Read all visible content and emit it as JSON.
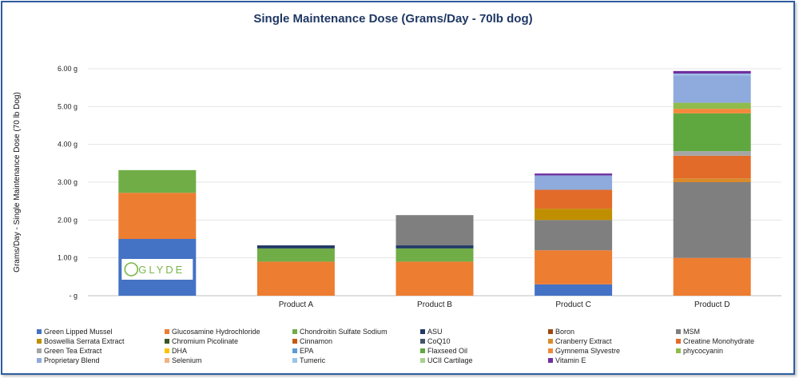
{
  "chart_data": {
    "type": "bar",
    "stacked": true,
    "title": "Single Maintenance Dose (Grams/Day - 70lb dog)",
    "ylabel": "Grams/Day - Single Maintenance Dose (70 lb Dog)",
    "xlabel": "",
    "ylim": [
      0,
      6
    ],
    "yticks": [
      {
        "value": 0,
        "label": "-   g"
      },
      {
        "value": 1,
        "label": "1.00 g"
      },
      {
        "value": 2,
        "label": "2.00 g"
      },
      {
        "value": 3,
        "label": "3.00 g"
      },
      {
        "value": 4,
        "label": "4.00 g"
      },
      {
        "value": 5,
        "label": "5.00 g"
      },
      {
        "value": 6,
        "label": "6.00 g"
      }
    ],
    "categories": [
      "",
      "Product A",
      "Product B",
      "Product C",
      "Product D"
    ],
    "logo_text": "GLYDE",
    "legend_position": "bottom",
    "series": [
      {
        "name": "Green Lipped Mussel",
        "color": "#4472c4",
        "values": [
          1.5,
          0,
          0,
          0.3,
          0
        ]
      },
      {
        "name": "Glucosamine Hydrochloride",
        "color": "#ed7d31",
        "values": [
          1.22,
          0.9,
          0.9,
          0.9,
          1.0
        ]
      },
      {
        "name": "Chondroitin Sulfate Sodium",
        "color": "#70ad47",
        "values": [
          0.6,
          0.35,
          0.35,
          0,
          0
        ]
      },
      {
        "name": "ASU",
        "color": "#203864",
        "values": [
          0,
          0.08,
          0.08,
          0,
          0
        ]
      },
      {
        "name": "Boron",
        "color": "#9e480e",
        "values": [
          0,
          0,
          0,
          0,
          0
        ]
      },
      {
        "name": "MSM",
        "color": "#7f7f7f",
        "values": [
          0,
          0,
          0.8,
          0.8,
          2.0
        ]
      },
      {
        "name": "Boswellia Serrata Extract",
        "color": "#bf8f00",
        "values": [
          0,
          0,
          0,
          0.3,
          0
        ]
      },
      {
        "name": "Chromium Picolinate",
        "color": "#375623",
        "values": [
          0,
          0,
          0,
          0,
          0
        ]
      },
      {
        "name": "Cinnamon",
        "color": "#c55a11",
        "values": [
          0,
          0,
          0,
          0,
          0
        ]
      },
      {
        "name": "CoQ10",
        "color": "#44546a",
        "values": [
          0,
          0,
          0,
          0,
          0
        ]
      },
      {
        "name": "Cranberry Extract",
        "color": "#d98b2b",
        "values": [
          0,
          0,
          0,
          0,
          0.1
        ]
      },
      {
        "name": "Creatine Monohydrate",
        "color": "#e26b2a",
        "values": [
          0,
          0,
          0,
          0.5,
          0.6
        ]
      },
      {
        "name": "Green Tea Extract",
        "color": "#a5a5a5",
        "values": [
          0,
          0,
          0,
          0,
          0.12
        ]
      },
      {
        "name": "DHA",
        "color": "#ffc000",
        "values": [
          0,
          0,
          0,
          0,
          0
        ]
      },
      {
        "name": "EPA",
        "color": "#5b9bd5",
        "values": [
          0,
          0,
          0,
          0,
          0
        ]
      },
      {
        "name": "Flaxseed Oil",
        "color": "#5fa83f",
        "values": [
          0,
          0,
          0,
          0,
          1.0
        ]
      },
      {
        "name": "Gymnema Slyvestre",
        "color": "#f4883a",
        "values": [
          0,
          0,
          0,
          0,
          0.12
        ]
      },
      {
        "name": "phycocyanin",
        "color": "#8fbc4b",
        "values": [
          0,
          0,
          0,
          0,
          0.16
        ]
      },
      {
        "name": "Proprietary Blend",
        "color": "#8faadc",
        "values": [
          0,
          0,
          0,
          0.38,
          0.72
        ]
      },
      {
        "name": "Selenium",
        "color": "#f4b183",
        "values": [
          0,
          0,
          0,
          0,
          0
        ]
      },
      {
        "name": "Tumeric",
        "color": "#9dc3e6",
        "values": [
          0,
          0,
          0,
          0,
          0.05
        ]
      },
      {
        "name": "UCII Cartilage",
        "color": "#a9d18e",
        "values": [
          0,
          0,
          0,
          0,
          0
        ]
      },
      {
        "name": "Vitamin E",
        "color": "#7030a0",
        "values": [
          0,
          0,
          0,
          0.05,
          0.07
        ]
      }
    ]
  }
}
